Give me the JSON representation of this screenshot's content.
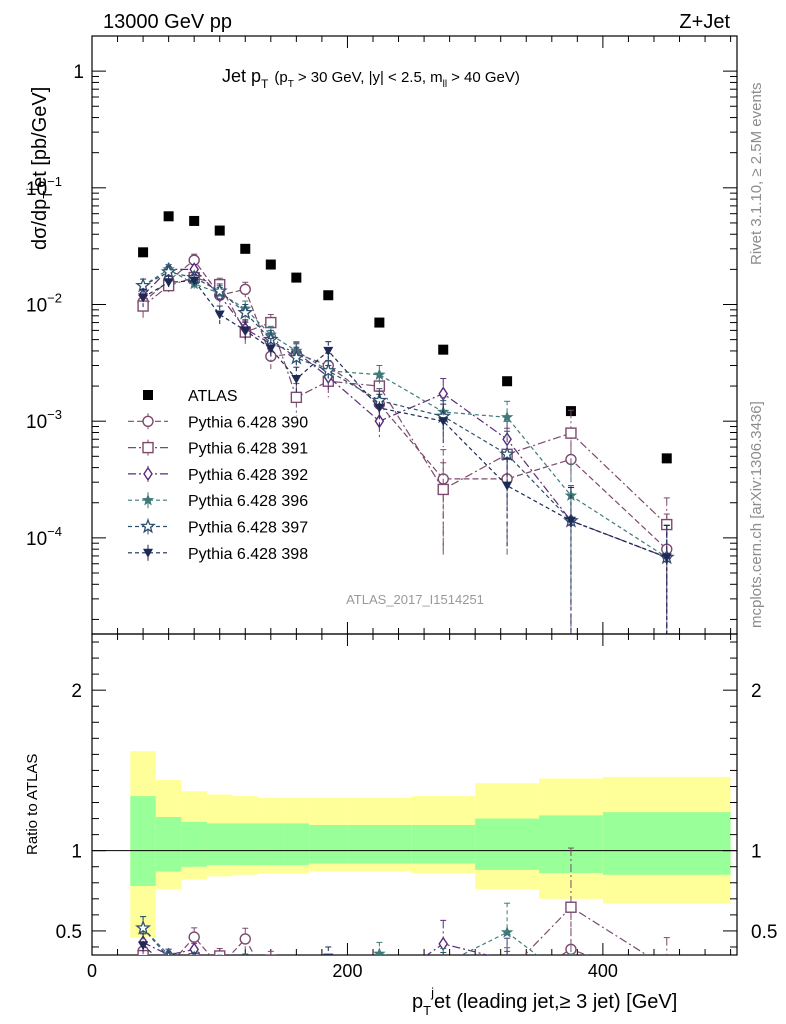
{
  "header": {
    "left": "13000 GeV pp",
    "right": "Z+Jet"
  },
  "side_labels": {
    "rivet": "Rivet 3.1.10, ≥ 2.5M events",
    "mcplots": "mcplots.cern.ch [arXiv:1306.3436]"
  },
  "chart_data": {
    "type": "scatter",
    "title_main": "Jet p",
    "title_main_sub": "T",
    "title_cuts": "(p",
    "title_cuts_sub": "T",
    "title_cuts_rest": "> 30 GeV, |y| < 2.5, m",
    "title_cuts_sub2": "ll",
    "title_cuts_end": "> 40 GeV)",
    "watermark": "ATLAS_2017_I1514251",
    "ylabel": "dσ/dp",
    "ylabel_sub": "T",
    "ylabel_sup": "j",
    "ylabel_rest": "et [pb/GeV]",
    "ratio_ylabel": "Ratio to ATLAS",
    "xlabel": "p",
    "xlabel_sub": "T",
    "xlabel_sup": "j",
    "xlabel_rest": "et (leading jet,≥ 3 jet) [GeV]",
    "xlim": [
      0,
      505
    ],
    "ylim": [
      1.5e-05,
      2.0
    ],
    "yscale": "log",
    "ratio_ylim": [
      0.35,
      2.35
    ],
    "x_ticks": [
      "0",
      "200",
      "400"
    ],
    "x_tick_values": [
      0,
      200,
      400
    ],
    "y_ticks": [
      {
        "value": 1,
        "base": "1",
        "exp": ""
      },
      {
        "value": 0.1,
        "base": "10",
        "exp": "−1"
      },
      {
        "value": 0.01,
        "base": "10",
        "exp": "−2"
      },
      {
        "value": 0.001,
        "base": "10",
        "exp": "−3"
      },
      {
        "value": 0.0001,
        "base": "10",
        "exp": "−4"
      }
    ],
    "ratio_ticks": [
      "2",
      "1",
      "0.5"
    ],
    "ratio_tick_values": [
      2,
      1,
      0.5
    ],
    "bins": [
      {
        "lo": 30,
        "hi": 50,
        "x": 40
      },
      {
        "lo": 50,
        "hi": 70,
        "x": 60
      },
      {
        "lo": 70,
        "hi": 90,
        "x": 80
      },
      {
        "lo": 90,
        "hi": 110,
        "x": 100
      },
      {
        "lo": 110,
        "hi": 130,
        "x": 120
      },
      {
        "lo": 130,
        "hi": 150,
        "x": 140
      },
      {
        "lo": 150,
        "hi": 170,
        "x": 160
      },
      {
        "lo": 170,
        "hi": 200,
        "x": 185
      },
      {
        "lo": 200,
        "hi": 250,
        "x": 225
      },
      {
        "lo": 250,
        "hi": 300,
        "x": 275
      },
      {
        "lo": 300,
        "hi": 350,
        "x": 325
      },
      {
        "lo": 350,
        "hi": 400,
        "x": 375
      },
      {
        "lo": 400,
        "hi": 500,
        "x": 450
      }
    ],
    "band_inner": [
      [
        0.78,
        1.34
      ],
      [
        0.87,
        1.21
      ],
      [
        0.9,
        1.18
      ],
      [
        0.91,
        1.17
      ],
      [
        0.91,
        1.17
      ],
      [
        0.91,
        1.17
      ],
      [
        0.91,
        1.17
      ],
      [
        0.92,
        1.16
      ],
      [
        0.92,
        1.16
      ],
      [
        0.92,
        1.16
      ],
      [
        0.88,
        1.2
      ],
      [
        0.86,
        1.22
      ],
      [
        0.85,
        1.24
      ]
    ],
    "band_outer": [
      [
        0.46,
        1.62
      ],
      [
        0.76,
        1.44
      ],
      [
        0.82,
        1.37
      ],
      [
        0.84,
        1.35
      ],
      [
        0.85,
        1.34
      ],
      [
        0.86,
        1.33
      ],
      [
        0.86,
        1.33
      ],
      [
        0.87,
        1.33
      ],
      [
        0.87,
        1.33
      ],
      [
        0.86,
        1.34
      ],
      [
        0.76,
        1.42
      ],
      [
        0.7,
        1.45
      ],
      [
        0.67,
        1.46
      ]
    ],
    "series": [
      {
        "name": "ATLAS",
        "color": "#000000",
        "marker": "square-filled",
        "dash": "",
        "x": [
          40,
          60,
          80,
          100,
          120,
          140,
          160,
          185,
          225,
          275,
          325,
          375,
          450
        ],
        "y": [
          0.028,
          0.057,
          0.052,
          0.043,
          0.03,
          0.022,
          0.017,
          0.012,
          0.007,
          0.0041,
          0.0022,
          0.00122,
          0.00048
        ]
      },
      {
        "name": "Pythia 6.428 390",
        "color": "#7b4a6e",
        "marker": "circle-open",
        "dash": "6,3",
        "x": [
          40,
          60,
          80,
          100,
          120,
          140,
          160,
          185,
          225,
          275,
          325,
          375,
          450
        ],
        "y": [
          0.0105,
          0.016,
          0.024,
          0.012,
          0.0135,
          0.0036,
          0.0038,
          0.003,
          0.0014,
          0.00032,
          0.00032,
          0.00047,
          8e-05
        ],
        "err": [
          0.002,
          0.002,
          0.003,
          0.002,
          0.002,
          0.0008,
          0.0008,
          0.0008,
          0.0004,
          0.00025,
          0.00025,
          0.00035,
          8e-05
        ]
      },
      {
        "name": "Pythia 6.428 391",
        "color": "#7b4a6e",
        "marker": "square-open",
        "dash": "8,3,2,3",
        "x": [
          40,
          60,
          80,
          100,
          120,
          140,
          160,
          185,
          225,
          275,
          325,
          375,
          450
        ],
        "y": [
          0.0097,
          0.0145,
          0.017,
          0.0148,
          0.0058,
          0.007,
          0.0016,
          0.0022,
          0.002,
          0.00026,
          0.00052,
          0.00079,
          0.00013
        ],
        "err": [
          0.002,
          0.002,
          0.002,
          0.002,
          0.0012,
          0.0012,
          0.0005,
          0.0006,
          0.0005,
          0.00018,
          0.00035,
          0.00045,
          9e-05
        ]
      },
      {
        "name": "Pythia 6.428 392",
        "color": "#5a2a7a",
        "marker": "diamond-open",
        "dash": "8,3,2,3",
        "x": [
          40,
          60,
          80,
          100,
          120,
          140,
          160,
          185,
          225,
          275,
          325,
          375,
          450
        ],
        "y": [
          0.012,
          0.02,
          0.02,
          0.012,
          0.0062,
          0.0046,
          0.0039,
          0.0024,
          0.001,
          0.00172,
          0.0007,
          0.00014,
          6.8e-05
        ],
        "err": [
          0.002,
          0.002,
          0.002,
          0.002,
          0.0012,
          0.001,
          0.0008,
          0.0006,
          0.0003,
          0.0006,
          0.0003,
          0.00014,
          6e-05
        ]
      },
      {
        "name": "Pythia 6.428 396",
        "color": "#3f7a78",
        "marker": "star-filled",
        "dash": "4,3",
        "x": [
          40,
          60,
          80,
          100,
          120,
          140,
          160,
          185,
          225,
          275,
          325,
          375,
          450
        ],
        "y": [
          0.0145,
          0.02,
          0.015,
          0.0125,
          0.0092,
          0.0055,
          0.004,
          0.0027,
          0.0025,
          0.0012,
          0.00108,
          0.00023,
          6.8e-05
        ],
        "err": [
          0.002,
          0.002,
          0.002,
          0.002,
          0.0015,
          0.001,
          0.0008,
          0.0006,
          0.0005,
          0.0004,
          0.0004,
          0.0002,
          6e-05
        ]
      },
      {
        "name": "Pythia 6.428 397",
        "color": "#2f4f6e",
        "marker": "star-open",
        "dash": "4,3",
        "x": [
          40,
          60,
          80,
          100,
          120,
          140,
          160,
          185,
          225,
          275,
          325,
          375,
          450
        ],
        "y": [
          0.0145,
          0.019,
          0.017,
          0.013,
          0.0085,
          0.005,
          0.0035,
          0.0027,
          0.0015,
          0.0011,
          0.00052,
          0.00014,
          6.8e-05
        ],
        "err": [
          0.002,
          0.002,
          0.002,
          0.002,
          0.0015,
          0.001,
          0.0008,
          0.0006,
          0.0004,
          0.0004,
          0.0003,
          0.00013,
          6e-05
        ]
      },
      {
        "name": "Pythia 6.428 398",
        "color": "#1c2a55",
        "marker": "triangle-down",
        "dash": "4,3",
        "x": [
          40,
          60,
          80,
          100,
          120,
          140,
          160,
          185,
          225,
          275,
          325,
          375,
          450
        ],
        "y": [
          0.0115,
          0.0155,
          0.016,
          0.0082,
          0.006,
          0.0042,
          0.0023,
          0.004,
          0.0013,
          0.001,
          0.00028,
          0.00014,
          6.8e-05
        ],
        "err": [
          0.002,
          0.002,
          0.002,
          0.0015,
          0.0012,
          0.0009,
          0.0006,
          0.0008,
          0.0004,
          0.0004,
          0.0002,
          0.00013,
          6e-05
        ]
      }
    ]
  }
}
